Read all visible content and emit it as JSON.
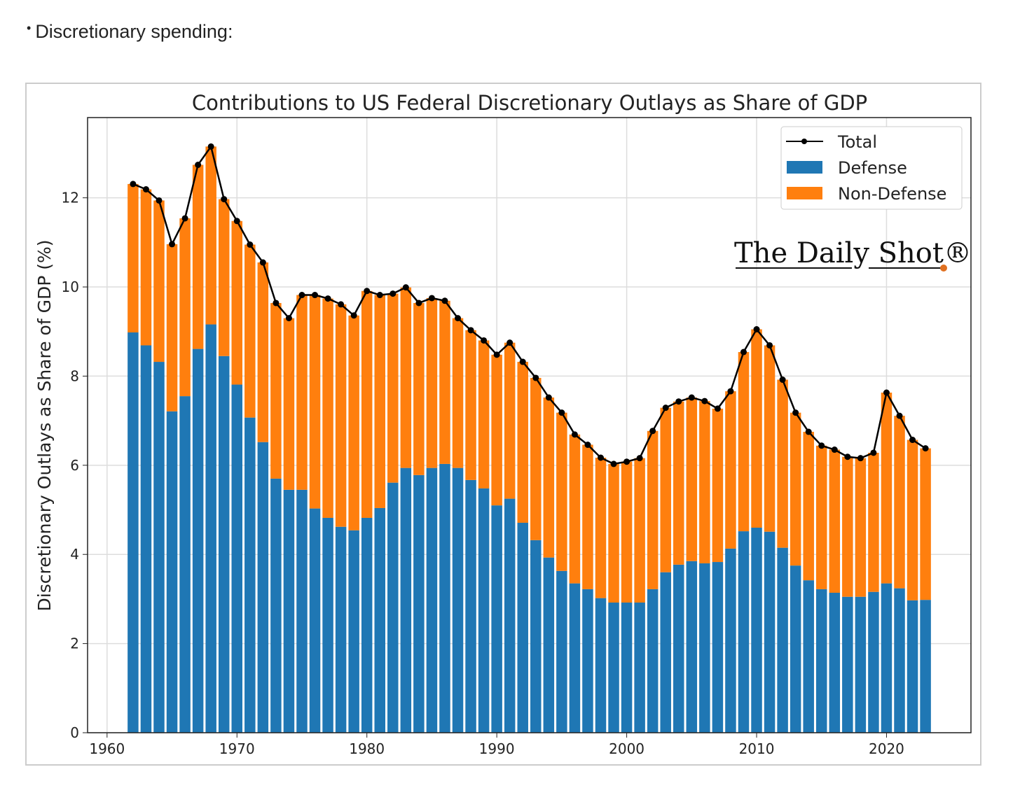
{
  "page": {
    "bullet_text": "Discretionary spending:"
  },
  "chart_data": {
    "type": "bar",
    "stacked": true,
    "title": "Contributions to US Federal Discretionary Outlays as Share of GDP",
    "xlabel": "",
    "ylabel": "Discretionary Outlays as Share of GDP (%)",
    "xlim": [
      1958.5,
      2026.5
    ],
    "ylim": [
      0,
      13.8
    ],
    "xticks": [
      1960,
      1970,
      1980,
      1990,
      2000,
      2010,
      2020
    ],
    "yticks": [
      0,
      2,
      4,
      6,
      8,
      10,
      12
    ],
    "grid": true,
    "legend": {
      "placement": "top-right",
      "entries": [
        "Total",
        "Defense",
        "Non-Defense"
      ]
    },
    "watermark": "The Daily Shot®",
    "colors": {
      "defense": "#1f77b4",
      "non_defense": "#ff7f0e",
      "total": "#000000"
    },
    "x": [
      1962,
      1963,
      1964,
      1965,
      1966,
      1967,
      1968,
      1969,
      1970,
      1971,
      1972,
      1973,
      1974,
      1975,
      1976,
      1977,
      1978,
      1979,
      1980,
      1981,
      1982,
      1983,
      1984,
      1985,
      1986,
      1987,
      1988,
      1989,
      1990,
      1991,
      1992,
      1993,
      1994,
      1995,
      1996,
      1997,
      1998,
      1999,
      2000,
      2001,
      2002,
      2003,
      2004,
      2005,
      2006,
      2007,
      2008,
      2009,
      2010,
      2011,
      2012,
      2013,
      2014,
      2015,
      2016,
      2017,
      2018,
      2019,
      2020,
      2021,
      2022,
      2023
    ],
    "series": [
      {
        "name": "Defense",
        "values": [
          8.98,
          8.69,
          8.32,
          7.21,
          7.55,
          8.61,
          9.16,
          8.45,
          7.81,
          7.07,
          6.52,
          5.7,
          5.45,
          5.45,
          5.03,
          4.82,
          4.62,
          4.54,
          4.82,
          5.04,
          5.61,
          5.94,
          5.78,
          5.94,
          6.03,
          5.94,
          5.67,
          5.48,
          5.1,
          5.25,
          4.71,
          4.32,
          3.93,
          3.63,
          3.35,
          3.22,
          3.02,
          2.92,
          2.92,
          2.92,
          3.22,
          3.6,
          3.77,
          3.85,
          3.8,
          3.83,
          4.13,
          4.52,
          4.6,
          4.51,
          4.15,
          3.75,
          3.42,
          3.22,
          3.14,
          3.05,
          3.05,
          3.16,
          3.35,
          3.24,
          2.97,
          2.98
        ]
      },
      {
        "name": "Total",
        "values": [
          12.31,
          12.19,
          11.94,
          10.96,
          11.54,
          12.74,
          13.15,
          11.97,
          11.48,
          10.95,
          10.55,
          9.64,
          9.3,
          9.82,
          9.82,
          9.74,
          9.61,
          9.36,
          9.91,
          9.82,
          9.85,
          9.99,
          9.64,
          9.75,
          9.69,
          9.3,
          9.03,
          8.8,
          8.48,
          8.75,
          8.32,
          7.96,
          7.52,
          7.18,
          6.69,
          6.46,
          6.17,
          6.03,
          6.08,
          6.16,
          6.77,
          7.29,
          7.43,
          7.52,
          7.44,
          7.27,
          7.66,
          8.54,
          9.05,
          8.69,
          7.92,
          7.18,
          6.75,
          6.44,
          6.35,
          6.19,
          6.16,
          6.28,
          7.63,
          7.11,
          6.57,
          6.38
        ]
      }
    ]
  }
}
